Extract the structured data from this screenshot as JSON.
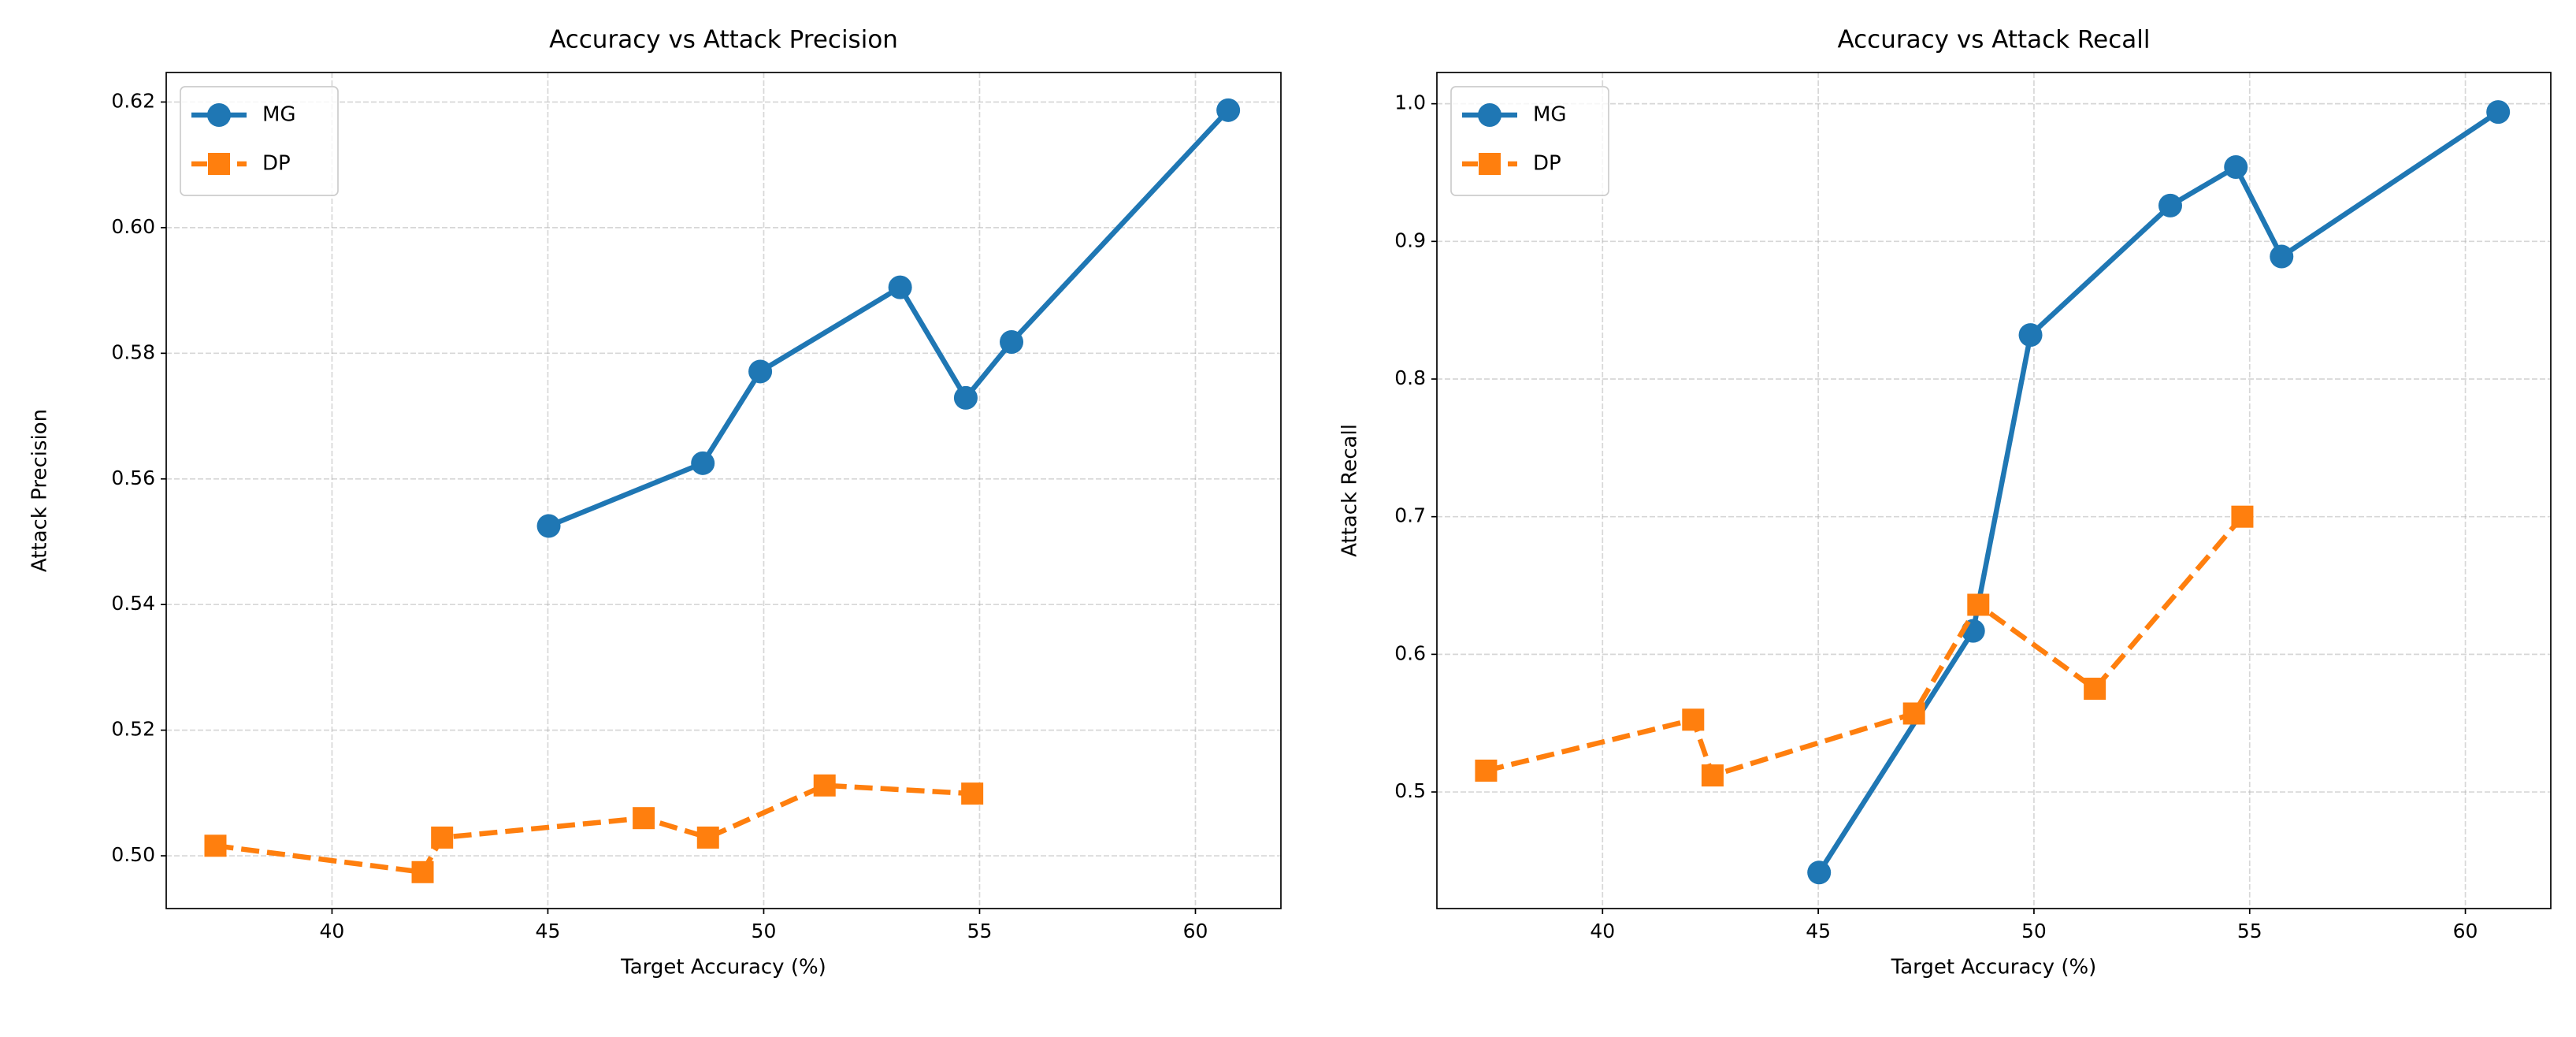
{
  "chart_data": [
    {
      "type": "line",
      "title": "Accuracy vs Attack Precision",
      "xlabel": "Target Accuracy (%)",
      "ylabel": "Attack Precision",
      "xlim": [
        36.16,
        61.98
      ],
      "ylim": [
        0.4916,
        0.6247
      ],
      "xticks": [
        40,
        45,
        50,
        55,
        60
      ],
      "yticks": [
        {
          "value": 0.5,
          "label": "0.50"
        },
        0.52,
        0.54,
        0.56,
        0.58,
        {
          "value": 0.6,
          "label": "0.60"
        },
        0.62
      ],
      "grid": true,
      "legend": "upper left",
      "series": [
        {
          "name": "MG",
          "color": "#1f77b4",
          "marker": "circle",
          "linestyle": "solid",
          "x": [
            45.02,
            48.59,
            49.92,
            53.16,
            54.68,
            55.74,
            60.76
          ],
          "values": [
            0.5525,
            0.5625,
            0.5771,
            0.5905,
            0.5729,
            0.5818,
            0.6187
          ]
        },
        {
          "name": "DP",
          "color": "#ff7f0e",
          "marker": "square",
          "linestyle": "dashed",
          "x": [
            37.3,
            42.1,
            42.55,
            47.22,
            48.71,
            51.41,
            54.83
          ],
          "values": [
            0.5016,
            0.4974,
            0.5029,
            0.506,
            0.5029,
            0.5112,
            0.5099
          ]
        }
      ]
    },
    {
      "type": "line",
      "title": "Accuracy vs Attack Recall",
      "xlabel": "Target Accuracy (%)",
      "ylabel": "Attack Recall",
      "xlim": [
        36.16,
        61.98
      ],
      "ylim": [
        0.4153,
        1.0227
      ],
      "xticks": [
        40,
        45,
        50,
        55,
        60
      ],
      "yticks": [
        0.5,
        0.6,
        0.7,
        0.8,
        0.9,
        {
          "value": 1.0,
          "label": "1.0"
        }
      ],
      "grid": true,
      "legend": "upper left",
      "series": [
        {
          "name": "MG",
          "color": "#1f77b4",
          "marker": "circle",
          "linestyle": "solid",
          "x": [
            45.02,
            48.59,
            49.92,
            53.16,
            54.68,
            55.74,
            60.76
          ],
          "values": [
            0.4415,
            0.617,
            0.832,
            0.926,
            0.954,
            0.889,
            0.994
          ]
        },
        {
          "name": "DP",
          "color": "#ff7f0e",
          "marker": "square",
          "linestyle": "dashed",
          "x": [
            37.3,
            42.1,
            42.55,
            47.22,
            48.71,
            51.41,
            54.83
          ],
          "values": [
            0.5155,
            0.5525,
            0.512,
            0.557,
            0.636,
            0.575,
            0.7
          ]
        }
      ]
    }
  ]
}
